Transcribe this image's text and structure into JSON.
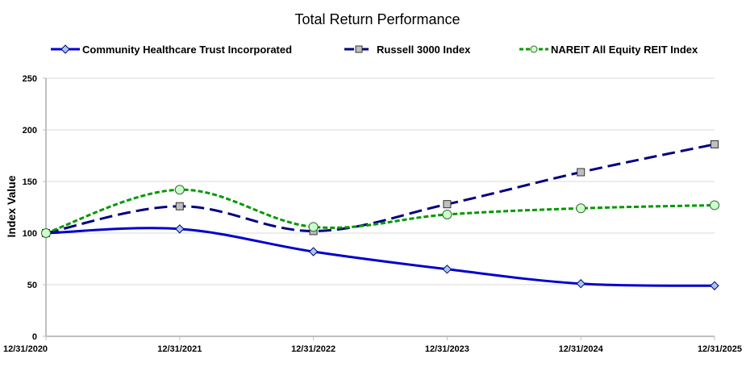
{
  "chart_data": {
    "type": "line",
    "title": "Total Return Performance",
    "xlabel": "",
    "ylabel": "Index Value",
    "categories": [
      "12/31/2020",
      "12/31/2021",
      "12/31/2022",
      "12/31/2023",
      "12/31/2024",
      "12/31/2025"
    ],
    "ylim": [
      0,
      250
    ],
    "yticks": [
      0,
      50,
      100,
      150,
      200,
      250
    ],
    "grid": true,
    "legend_position": "top",
    "series": [
      {
        "name": "Community Healthcare Trust Incorporated",
        "values": [
          100,
          104,
          82,
          65,
          51,
          49
        ],
        "color": "#0000CC",
        "line_style": "solid",
        "marker": "diamond",
        "marker_fill": "#A6C9E8",
        "legend_glyph": "◆"
      },
      {
        "name": "Russell 3000 Index",
        "values": [
          100,
          126,
          102,
          128,
          159,
          186
        ],
        "color": "#000080",
        "line_style": "dashed",
        "marker": "square",
        "marker_fill": "#BFBFBF",
        "legend_glyph": "■"
      },
      {
        "name": "NAREIT All Equity REIT Index",
        "values": [
          100,
          142,
          106,
          118,
          124,
          127
        ],
        "color": "#009900",
        "line_style": "dotted",
        "marker": "circle",
        "marker_fill": "#CCFFCC",
        "legend_glyph": "●"
      }
    ]
  }
}
